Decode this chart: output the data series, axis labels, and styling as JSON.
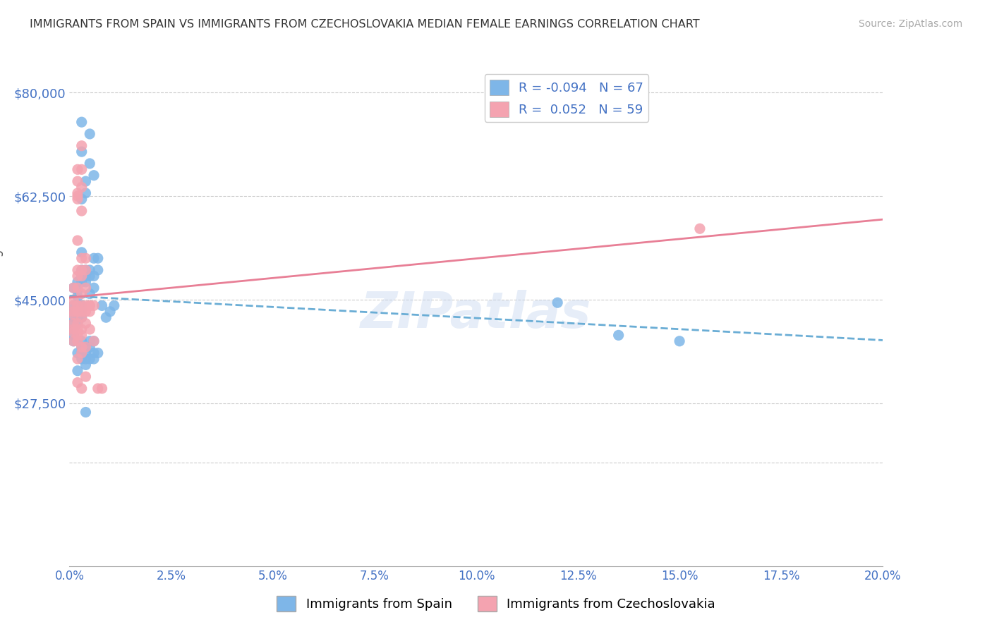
{
  "title": "IMMIGRANTS FROM SPAIN VS IMMIGRANTS FROM CZECHOSLOVAKIA MEDIAN FEMALE EARNINGS CORRELATION CHART",
  "source": "Source: ZipAtlas.com",
  "ylabel": "Median Female Earnings",
  "ymin": 0,
  "ymax": 85000,
  "xmin": 0.0,
  "xmax": 0.2,
  "legend_blue_r": "-0.094",
  "legend_blue_n": "67",
  "legend_pink_r": "0.052",
  "legend_pink_n": "59",
  "legend_label_blue": "Immigrants from Spain",
  "legend_label_pink": "Immigrants from Czechoslovakia",
  "color_blue": "#7EB6E8",
  "color_pink": "#F4A3B0",
  "line_blue": "#6aadd5",
  "line_pink": "#E87F96",
  "color_axis": "#4472C4",
  "watermark": "ZIPatlas",
  "background": "#FFFFFF",
  "grid_color": "#CCCCCC",
  "ytick_positions": [
    27500,
    45000,
    62500,
    80000
  ],
  "ytick_labels": [
    "$27,500",
    "$45,000",
    "$62,500",
    "$80,000"
  ],
  "grid_positions": [
    17500,
    27500,
    45000,
    62500,
    80000
  ],
  "scatter_blue": [
    [
      0.001,
      47000
    ],
    [
      0.001,
      44000
    ],
    [
      0.001,
      43000
    ],
    [
      0.001,
      42000
    ],
    [
      0.001,
      41000
    ],
    [
      0.001,
      40000
    ],
    [
      0.001,
      39000
    ],
    [
      0.001,
      38000
    ],
    [
      0.002,
      48000
    ],
    [
      0.002,
      46500
    ],
    [
      0.002,
      45500
    ],
    [
      0.002,
      44000
    ],
    [
      0.002,
      43000
    ],
    [
      0.002,
      42000
    ],
    [
      0.002,
      41000
    ],
    [
      0.002,
      36000
    ],
    [
      0.002,
      33000
    ],
    [
      0.003,
      75000
    ],
    [
      0.003,
      70000
    ],
    [
      0.003,
      62000
    ],
    [
      0.003,
      53000
    ],
    [
      0.003,
      50000
    ],
    [
      0.003,
      49000
    ],
    [
      0.003,
      48000
    ],
    [
      0.003,
      44000
    ],
    [
      0.003,
      44000
    ],
    [
      0.003,
      43000
    ],
    [
      0.003,
      42000
    ],
    [
      0.003,
      38000
    ],
    [
      0.003,
      37000
    ],
    [
      0.003,
      36000
    ],
    [
      0.003,
      35000
    ],
    [
      0.004,
      65000
    ],
    [
      0.004,
      63000
    ],
    [
      0.004,
      50000
    ],
    [
      0.004,
      49000
    ],
    [
      0.004,
      48000
    ],
    [
      0.004,
      37000
    ],
    [
      0.004,
      36000
    ],
    [
      0.004,
      35000
    ],
    [
      0.004,
      34000
    ],
    [
      0.004,
      26000
    ],
    [
      0.005,
      73000
    ],
    [
      0.005,
      68000
    ],
    [
      0.005,
      50000
    ],
    [
      0.005,
      49000
    ],
    [
      0.005,
      46000
    ],
    [
      0.005,
      38000
    ],
    [
      0.005,
      37000
    ],
    [
      0.005,
      35000
    ],
    [
      0.006,
      66000
    ],
    [
      0.006,
      52000
    ],
    [
      0.006,
      49000
    ],
    [
      0.006,
      47000
    ],
    [
      0.006,
      38000
    ],
    [
      0.006,
      36000
    ],
    [
      0.006,
      35000
    ],
    [
      0.007,
      52000
    ],
    [
      0.007,
      50000
    ],
    [
      0.007,
      36000
    ],
    [
      0.008,
      44000
    ],
    [
      0.009,
      42000
    ],
    [
      0.01,
      43000
    ],
    [
      0.011,
      44000
    ],
    [
      0.12,
      44500
    ],
    [
      0.135,
      39000
    ],
    [
      0.15,
      38000
    ]
  ],
  "scatter_pink": [
    [
      0.001,
      47000
    ],
    [
      0.001,
      45000
    ],
    [
      0.001,
      44000
    ],
    [
      0.001,
      43000
    ],
    [
      0.001,
      42500
    ],
    [
      0.001,
      41000
    ],
    [
      0.001,
      40000
    ],
    [
      0.001,
      39500
    ],
    [
      0.001,
      38000
    ],
    [
      0.002,
      67000
    ],
    [
      0.002,
      65000
    ],
    [
      0.002,
      63000
    ],
    [
      0.002,
      62500
    ],
    [
      0.002,
      62000
    ],
    [
      0.002,
      55000
    ],
    [
      0.002,
      50000
    ],
    [
      0.002,
      49000
    ],
    [
      0.002,
      47000
    ],
    [
      0.002,
      44000
    ],
    [
      0.002,
      43000
    ],
    [
      0.002,
      41000
    ],
    [
      0.002,
      40000
    ],
    [
      0.002,
      39000
    ],
    [
      0.002,
      38000
    ],
    [
      0.002,
      35000
    ],
    [
      0.002,
      31000
    ],
    [
      0.003,
      71000
    ],
    [
      0.003,
      67000
    ],
    [
      0.003,
      64000
    ],
    [
      0.003,
      60000
    ],
    [
      0.003,
      52000
    ],
    [
      0.003,
      50000
    ],
    [
      0.003,
      49000
    ],
    [
      0.003,
      46000
    ],
    [
      0.003,
      44000
    ],
    [
      0.003,
      43000
    ],
    [
      0.003,
      42000
    ],
    [
      0.003,
      40000
    ],
    [
      0.003,
      39000
    ],
    [
      0.003,
      37000
    ],
    [
      0.003,
      36000
    ],
    [
      0.003,
      30000
    ],
    [
      0.004,
      52000
    ],
    [
      0.004,
      50000
    ],
    [
      0.004,
      47000
    ],
    [
      0.004,
      44000
    ],
    [
      0.004,
      43000
    ],
    [
      0.004,
      41000
    ],
    [
      0.004,
      37000
    ],
    [
      0.004,
      32000
    ],
    [
      0.005,
      44000
    ],
    [
      0.005,
      44000
    ],
    [
      0.005,
      43000
    ],
    [
      0.005,
      40000
    ],
    [
      0.006,
      44000
    ],
    [
      0.006,
      38000
    ],
    [
      0.007,
      30000
    ],
    [
      0.008,
      30000
    ],
    [
      0.155,
      57000
    ]
  ]
}
